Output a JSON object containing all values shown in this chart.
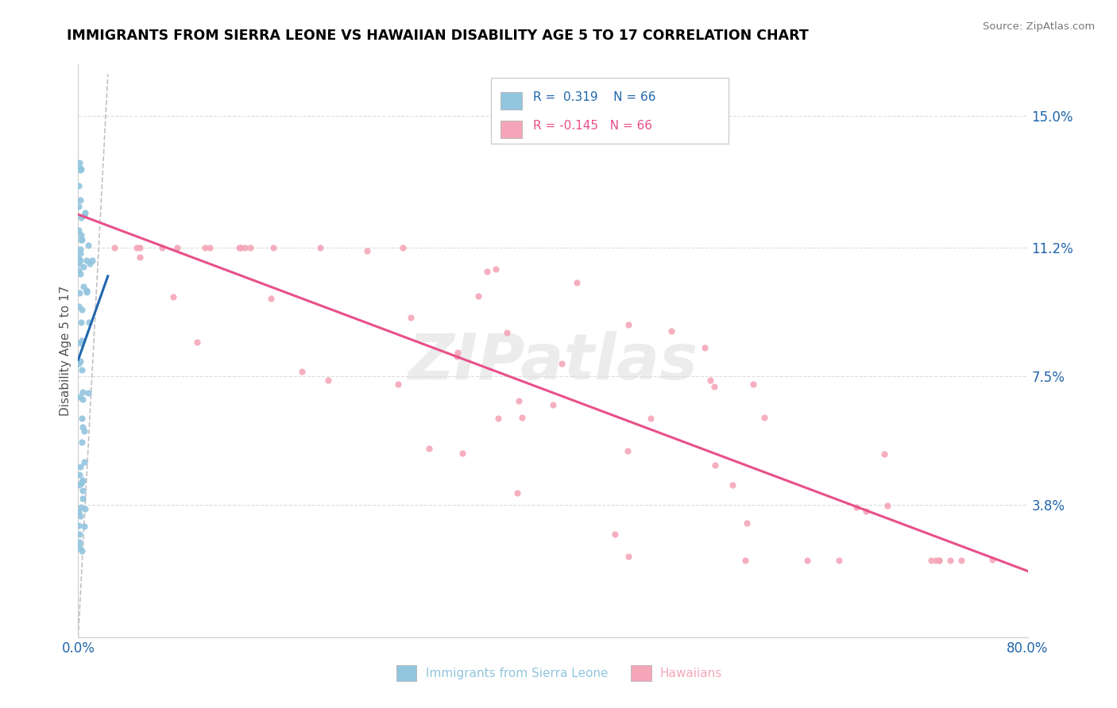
{
  "title": "IMMIGRANTS FROM SIERRA LEONE VS HAWAIIAN DISABILITY AGE 5 TO 17 CORRELATION CHART",
  "source": "Source: ZipAtlas.com",
  "ylabel": "Disability Age 5 to 17",
  "xmin": 0.0,
  "xmax": 0.8,
  "ymin": 0.0,
  "ymax": 0.165,
  "yticks": [
    0.038,
    0.075,
    0.112,
    0.15
  ],
  "ytick_labels": [
    "3.8%",
    "7.5%",
    "11.2%",
    "15.0%"
  ],
  "xtick_labels": [
    "0.0%",
    "80.0%"
  ],
  "legend_label1": "Immigrants from Sierra Leone",
  "legend_label2": "Hawaiians",
  "R1": 0.319,
  "N1": 66,
  "R2": -0.145,
  "N2": 66,
  "color_blue": "#92c5de",
  "color_pink": "#f4a6b8",
  "color_trend_blue": "#2166ac",
  "color_trend_pink": "#e8508a",
  "watermark": "ZIPatlas",
  "seed": 99
}
